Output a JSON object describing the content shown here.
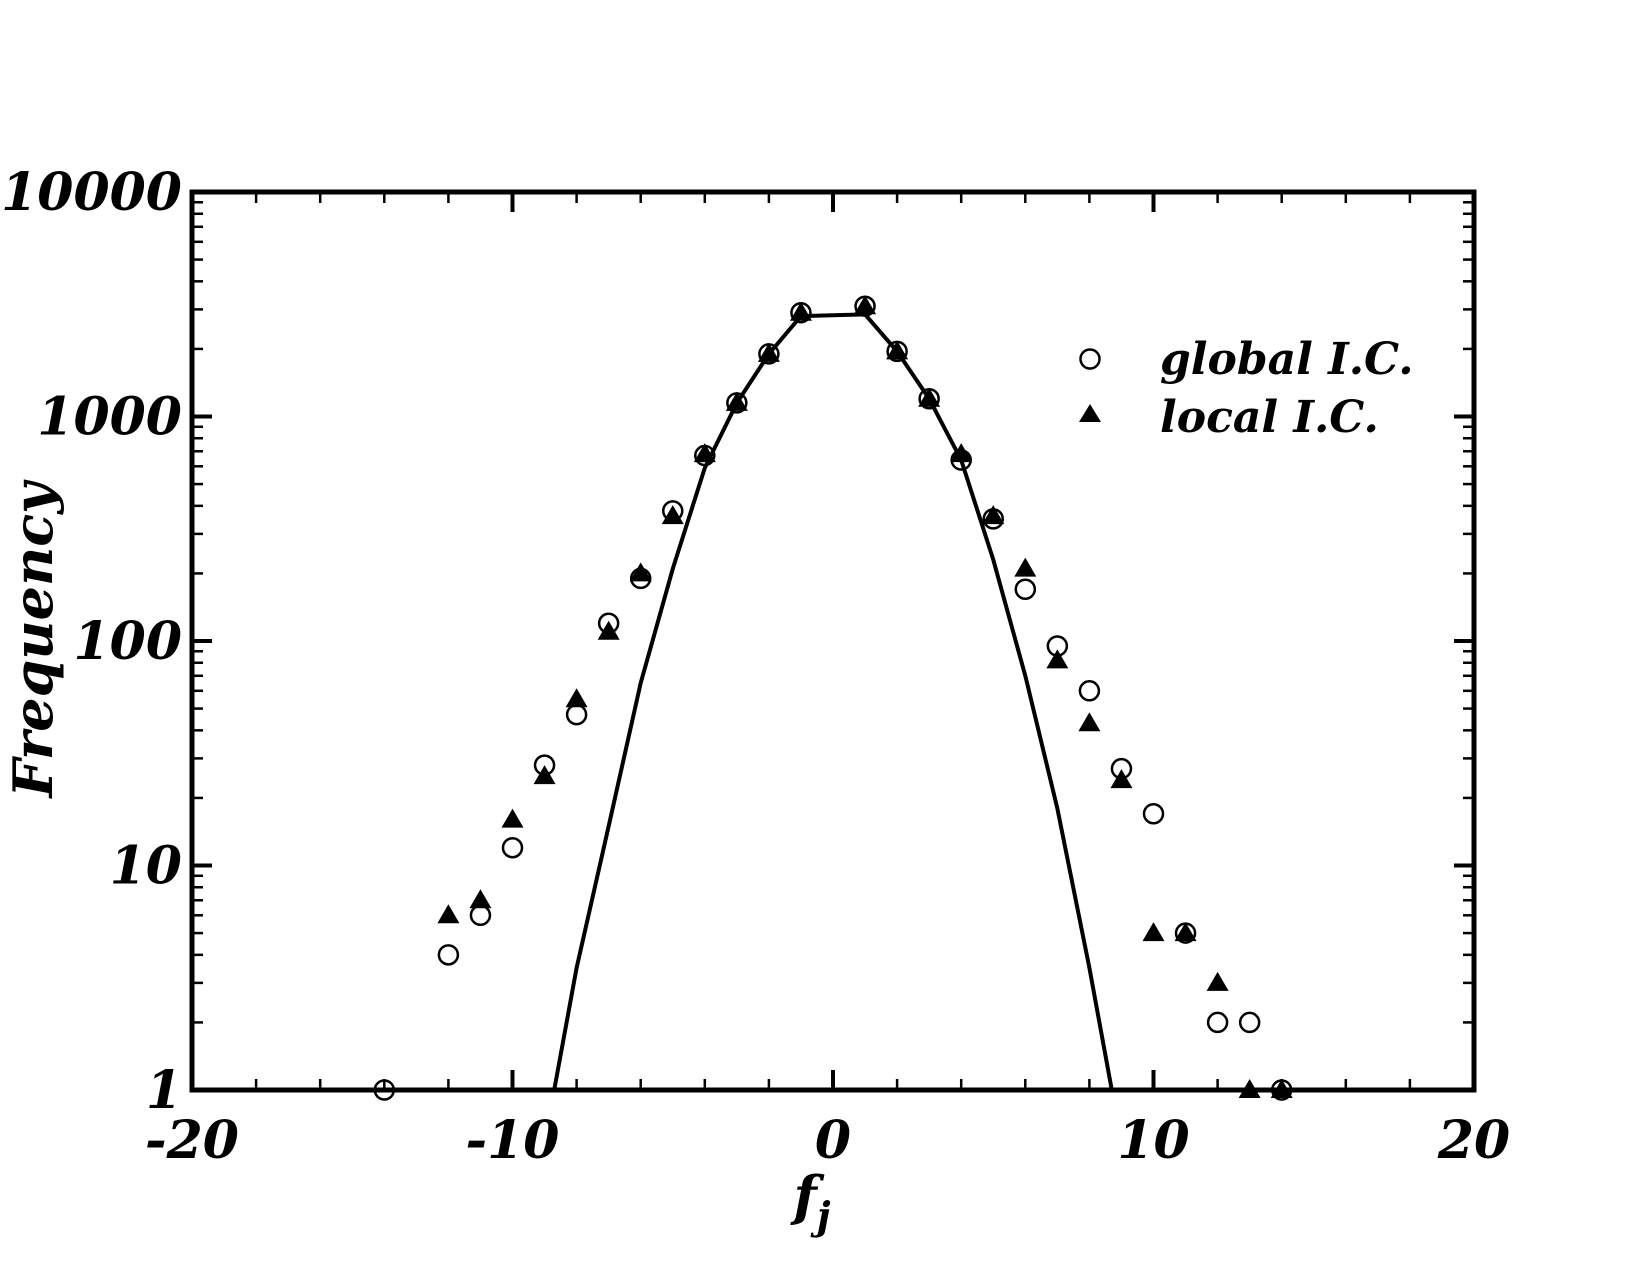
{
  "chart_data": {
    "type": "scatter",
    "xlabel": "f",
    "xlabel_sub": "j",
    "ylabel": "Frequency",
    "xlim": [
      -20,
      20
    ],
    "ylim": [
      1,
      10000
    ],
    "yscale": "log",
    "x_ticks": [
      -20,
      -10,
      0,
      10,
      20
    ],
    "x_tick_labels": [
      "-20",
      "-10",
      "0",
      "10",
      "20"
    ],
    "y_ticks": [
      1,
      10,
      100,
      1000,
      10000
    ],
    "y_tick_labels": [
      "1",
      "10",
      "100",
      "1000",
      "10000"
    ],
    "grid": false,
    "legend_position": "top-right",
    "series": [
      {
        "name": "global I.C.",
        "marker": "open-circle",
        "x": [
          -14,
          -12,
          -11,
          -10,
          -9,
          -8,
          -7,
          -6,
          -5,
          -4,
          -3,
          -2,
          -1,
          1,
          2,
          3,
          4,
          5,
          6,
          7,
          8,
          9,
          10,
          11,
          12,
          13,
          14
        ],
        "y": [
          1,
          4,
          6,
          12,
          28,
          47,
          120,
          190,
          380,
          670,
          1150,
          1900,
          2900,
          3100,
          1950,
          1200,
          640,
          350,
          170,
          95,
          60,
          27,
          17,
          5,
          2,
          2,
          1
        ]
      },
      {
        "name": "local I.C.",
        "marker": "filled-triangle",
        "x": [
          -12,
          -11,
          -10,
          -9,
          -8,
          -7,
          -6,
          -5,
          -4,
          -3,
          -2,
          -1,
          1,
          2,
          3,
          4,
          5,
          6,
          7,
          8,
          9,
          10,
          11,
          12,
          13,
          14
        ],
        "y": [
          6,
          7,
          16,
          25,
          55,
          110,
          200,
          360,
          680,
          1150,
          1900,
          2900,
          3100,
          1950,
          1200,
          680,
          360,
          210,
          82,
          43,
          24,
          5,
          5,
          3,
          1,
          1
        ]
      },
      {
        "marker": "line",
        "x": [
          -8.7,
          -8,
          -7,
          -6,
          -5,
          -4,
          -3,
          -2,
          -1,
          1,
          2,
          3,
          4,
          5,
          6,
          7,
          8,
          8.7
        ],
        "y": [
          1,
          3.5,
          15,
          65,
          210,
          590,
          1150,
          1900,
          2800,
          2850,
          1950,
          1200,
          640,
          230,
          70,
          18,
          3.5,
          1
        ]
      }
    ]
  }
}
